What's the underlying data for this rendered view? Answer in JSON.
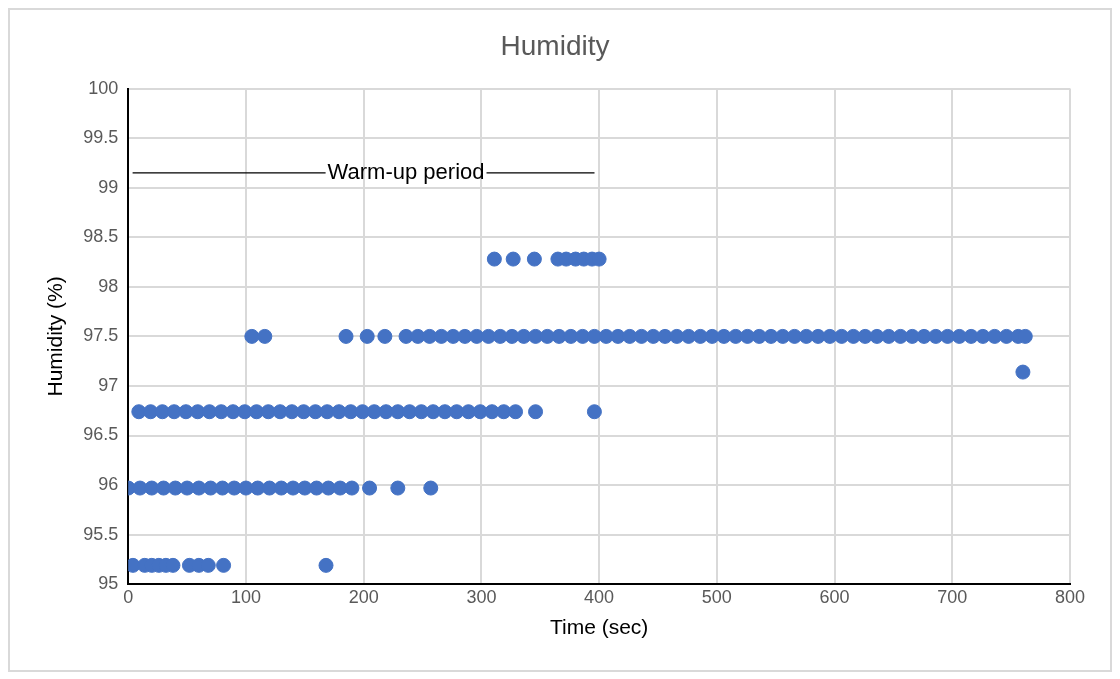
{
  "chart_data": {
    "type": "scatter",
    "title": "Humidity",
    "xlabel": "Time (sec)",
    "ylabel": "Humidity (%)",
    "xlim": [
      0,
      800
    ],
    "xticks": [
      0,
      100,
      200,
      300,
      400,
      500,
      600,
      700,
      800
    ],
    "ylim": [
      95,
      100
    ],
    "yticks": [
      95,
      95.5,
      96,
      96.5,
      97,
      97.5,
      98,
      98.5,
      99,
      99.5,
      100
    ],
    "grid": true,
    "legend": false,
    "marker": "circle",
    "annotations": [
      "Warm-up period"
    ],
    "series": [
      {
        "color": "#4472c4",
        "x": [
          311,
          327,
          345,
          365,
          372,
          380,
          387,
          394,
          400
        ],
        "values": [
          98.28,
          98.28,
          98.28,
          98.28,
          98.28,
          98.28,
          98.28,
          98.28,
          98.28
        ]
      },
      {
        "color": "#4472c4",
        "x": [
          105,
          116,
          185,
          203,
          218,
          236,
          246,
          256,
          266,
          276,
          286,
          296,
          306,
          316,
          326,
          336,
          346,
          356,
          366,
          376,
          386,
          396,
          406,
          416,
          426,
          436,
          446,
          456,
          466,
          476,
          486,
          496,
          506,
          516,
          526,
          536,
          546,
          556,
          566,
          576,
          586,
          596,
          606,
          616,
          626,
          636,
          646,
          656,
          666,
          676,
          686,
          696,
          706,
          716,
          726,
          736,
          746,
          756,
          762
        ],
        "values": [
          97.5,
          97.5,
          97.5,
          97.5,
          97.5,
          97.5,
          97.5,
          97.5,
          97.5,
          97.5,
          97.5,
          97.5,
          97.5,
          97.5,
          97.5,
          97.5,
          97.5,
          97.5,
          97.5,
          97.5,
          97.5,
          97.5,
          97.5,
          97.5,
          97.5,
          97.5,
          97.5,
          97.5,
          97.5,
          97.5,
          97.5,
          97.5,
          97.5,
          97.5,
          97.5,
          97.5,
          97.5,
          97.5,
          97.5,
          97.5,
          97.5,
          97.5,
          97.5,
          97.5,
          97.5,
          97.5,
          97.5,
          97.5,
          97.5,
          97.5,
          97.5,
          97.5,
          97.5,
          97.5,
          97.5,
          97.5,
          97.5,
          97.5,
          97.5
        ]
      },
      {
        "color": "#4472c4",
        "x": [
          760
        ],
        "values": [
          97.14
        ]
      },
      {
        "color": "#4472c4",
        "x": [
          9,
          19,
          29,
          39,
          49,
          59,
          69,
          79,
          89,
          99,
          109,
          119,
          129,
          139,
          149,
          159,
          169,
          179,
          189,
          199,
          209,
          219,
          229,
          239,
          249,
          259,
          269,
          279,
          289,
          299,
          309,
          319,
          329,
          346,
          396
        ],
        "values": [
          96.74,
          96.74,
          96.74,
          96.74,
          96.74,
          96.74,
          96.74,
          96.74,
          96.74,
          96.74,
          96.74,
          96.74,
          96.74,
          96.74,
          96.74,
          96.74,
          96.74,
          96.74,
          96.74,
          96.74,
          96.74,
          96.74,
          96.74,
          96.74,
          96.74,
          96.74,
          96.74,
          96.74,
          96.74,
          96.74,
          96.74,
          96.74,
          96.74,
          96.74,
          96.74
        ]
      },
      {
        "color": "#4472c4",
        "x": [
          0,
          10,
          20,
          30,
          40,
          50,
          60,
          70,
          80,
          90,
          100,
          110,
          120,
          130,
          140,
          150,
          160,
          170,
          180,
          190,
          205,
          229,
          257
        ],
        "values": [
          95.97,
          95.97,
          95.97,
          95.97,
          95.97,
          95.97,
          95.97,
          95.97,
          95.97,
          95.97,
          95.97,
          95.97,
          95.97,
          95.97,
          95.97,
          95.97,
          95.97,
          95.97,
          95.97,
          95.97,
          95.97,
          95.97,
          95.97
        ]
      },
      {
        "color": "#4472c4",
        "x": [
          4,
          14,
          20,
          26,
          32,
          38,
          52,
          60,
          68,
          81,
          168
        ],
        "values": [
          95.19,
          95.19,
          95.19,
          95.19,
          95.19,
          95.19,
          95.19,
          95.19,
          95.19,
          95.19,
          95.19
        ]
      }
    ]
  }
}
